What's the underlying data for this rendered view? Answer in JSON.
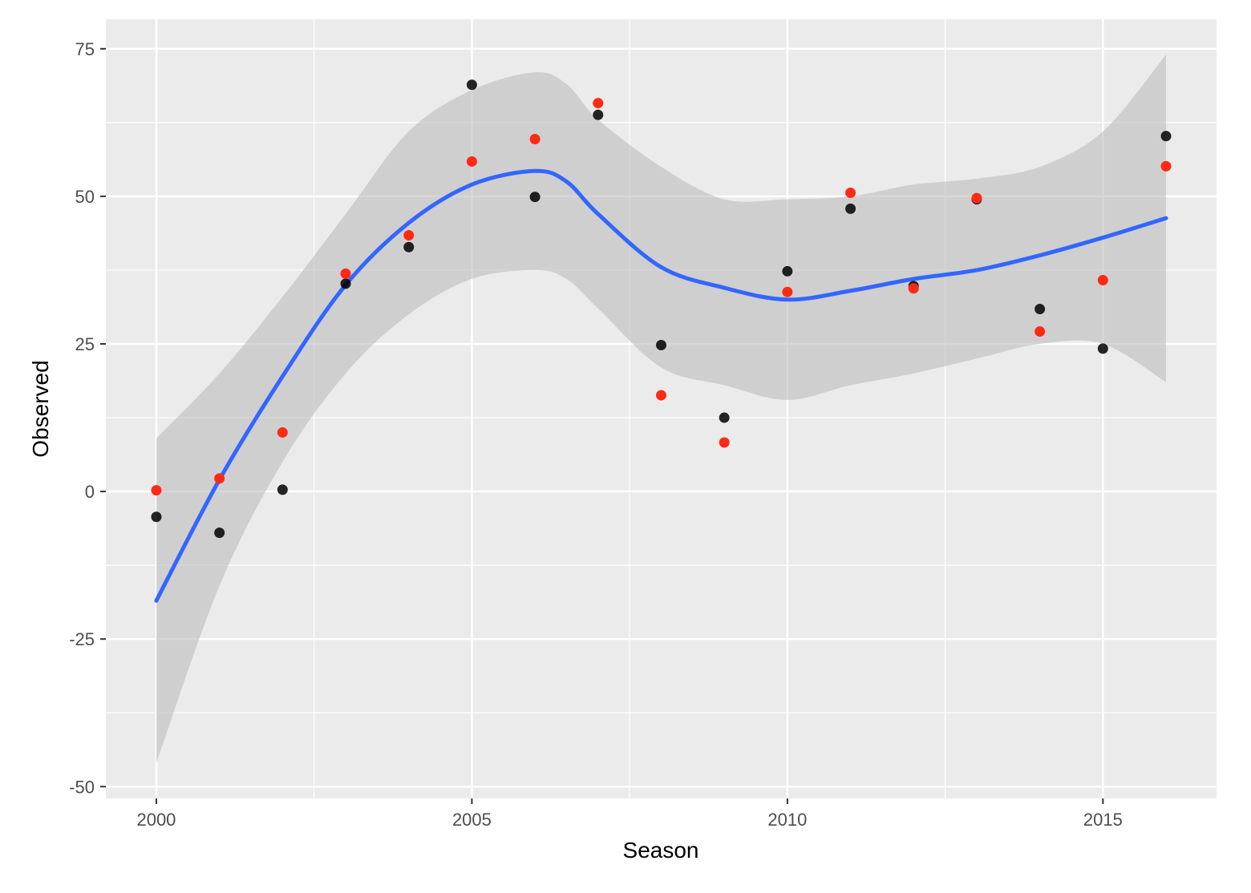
{
  "chart_data": {
    "type": "scatter",
    "xlabel": "Season",
    "ylabel": "Observed",
    "xlim": [
      1999.2,
      2016.8
    ],
    "ylim": [
      -52,
      80
    ],
    "x_ticks": [
      2000,
      2005,
      2010,
      2015
    ],
    "x_tick_labels": [
      "2000",
      "2005",
      "2010",
      "2015"
    ],
    "y_ticks": [
      75,
      50,
      25,
      0,
      -25,
      -50
    ],
    "y_tick_labels": [
      "75",
      "50",
      "25",
      "0",
      "-25",
      "-50"
    ],
    "grid": true,
    "legend": "none",
    "colors": {
      "panel": "#ebebeb",
      "grid": "#ffffff",
      "ribbon": "#bdbdbd",
      "smooth": "#3366ff",
      "series_a": "#000000",
      "series_b": "#ff2a14",
      "tick_label": "#4d4d4d",
      "axis_title": "#000000"
    },
    "series": [
      {
        "color": "#000000",
        "points": [
          [
            2000,
            -4.3
          ],
          [
            2001,
            -7.0
          ],
          [
            2002,
            0.3
          ],
          [
            2003,
            35.2
          ],
          [
            2004,
            41.4
          ],
          [
            2005,
            68.9
          ],
          [
            2006,
            49.9
          ],
          [
            2007,
            63.8
          ],
          [
            2008,
            24.8
          ],
          [
            2009,
            12.5
          ],
          [
            2010,
            37.3
          ],
          [
            2011,
            47.9
          ],
          [
            2012,
            34.8
          ],
          [
            2013,
            49.5
          ],
          [
            2014,
            30.9
          ],
          [
            2015,
            24.2
          ],
          [
            2016,
            60.2
          ]
        ]
      },
      {
        "color": "#ff2a14",
        "points": [
          [
            2000,
            0.2
          ],
          [
            2001,
            2.2
          ],
          [
            2002,
            10.0
          ],
          [
            2003,
            36.9
          ],
          [
            2004,
            43.4
          ],
          [
            2005,
            55.9
          ],
          [
            2006,
            59.7
          ],
          [
            2007,
            65.8
          ],
          [
            2008,
            16.3
          ],
          [
            2009,
            8.3
          ],
          [
            2010,
            33.8
          ],
          [
            2011,
            50.6
          ],
          [
            2012,
            34.4
          ],
          [
            2013,
            49.7
          ],
          [
            2014,
            27.1
          ],
          [
            2015,
            35.8
          ],
          [
            2016,
            55.1
          ]
        ]
      }
    ],
    "smooth": {
      "x": [
        2000,
        2001,
        2002,
        2003,
        2004,
        2005,
        2006,
        2006.5,
        2007,
        2008,
        2009,
        2010,
        2011,
        2012,
        2013,
        2014,
        2015,
        2016
      ],
      "y": [
        -18.5,
        2.0,
        19.5,
        35.0,
        45.5,
        52.0,
        54.3,
        52.5,
        47.0,
        38.0,
        34.5,
        32.5,
        34.0,
        36.0,
        37.5,
        40.0,
        43.0,
        46.3
      ],
      "upper": [
        9.0,
        20.0,
        33.0,
        47.0,
        61.0,
        68.0,
        71.0,
        69.0,
        63.0,
        55.0,
        49.5,
        49.5,
        50.0,
        52.0,
        53.0,
        55.0,
        61.0,
        74.0
      ],
      "lower": [
        -46.0,
        -16.0,
        5.0,
        20.0,
        30.0,
        36.0,
        37.5,
        36.0,
        31.0,
        21.0,
        18.0,
        15.5,
        18.0,
        20.0,
        22.5,
        25.0,
        25.0,
        18.5
      ]
    }
  }
}
